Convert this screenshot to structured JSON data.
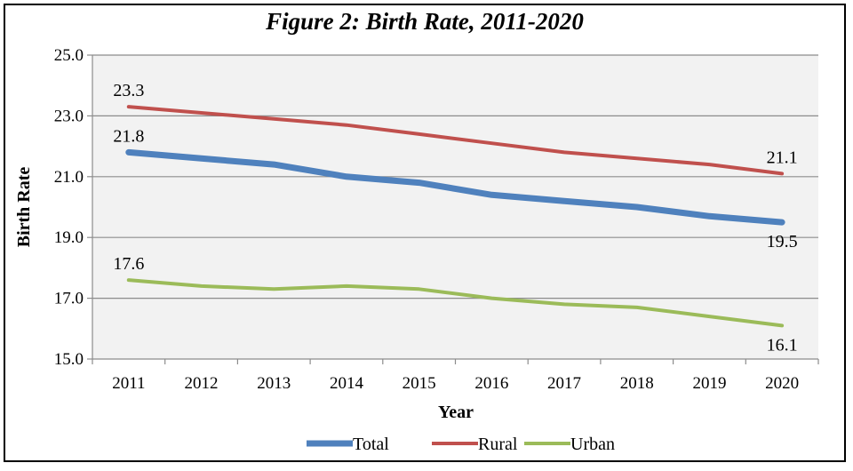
{
  "chart_data": {
    "type": "line",
    "title": "Figure 2: Birth Rate, 2011-2020",
    "xlabel": "Year",
    "ylabel": "Birth Rate",
    "ylim": [
      15.0,
      25.0
    ],
    "yticks": [
      "15.0",
      "17.0",
      "19.0",
      "21.0",
      "23.0",
      "25.0"
    ],
    "grid": true,
    "legend": "bottom",
    "categories": [
      "2011",
      "2012",
      "2013",
      "2014",
      "2015",
      "2016",
      "2017",
      "2018",
      "2019",
      "2020"
    ],
    "series": [
      {
        "name": "Total",
        "color": "#4f81bd",
        "values": [
          21.8,
          21.6,
          21.4,
          21.0,
          20.8,
          20.4,
          20.2,
          20.0,
          19.7,
          19.5
        ],
        "labels": [
          {
            "index": 0,
            "text": "21.8",
            "pos": "above"
          },
          {
            "index": 9,
            "text": "19.5",
            "pos": "below"
          }
        ]
      },
      {
        "name": "Rural",
        "color": "#c0504d",
        "values": [
          23.3,
          23.1,
          22.9,
          22.7,
          22.4,
          22.1,
          21.8,
          21.6,
          21.4,
          21.1
        ],
        "labels": [
          {
            "index": 0,
            "text": "23.3",
            "pos": "above"
          },
          {
            "index": 9,
            "text": "21.1",
            "pos": "above"
          }
        ]
      },
      {
        "name": "Urban",
        "color": "#9bbb59",
        "values": [
          17.6,
          17.4,
          17.3,
          17.4,
          17.3,
          17.0,
          16.8,
          16.7,
          16.4,
          16.1
        ],
        "labels": [
          {
            "index": 0,
            "text": "17.6",
            "pos": "above"
          },
          {
            "index": 9,
            "text": "16.1",
            "pos": "below"
          }
        ]
      }
    ]
  }
}
